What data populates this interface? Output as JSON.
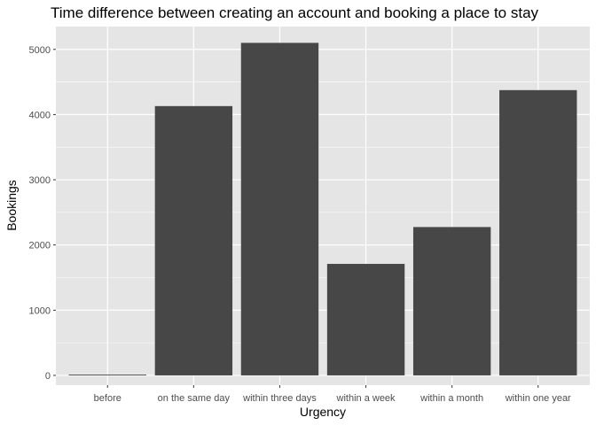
{
  "chart_data": {
    "type": "bar",
    "title": "Time difference between creating an account and booking a place to stay",
    "xlabel": "Urgency",
    "ylabel": "Bookings",
    "categories": [
      "before",
      "on the same day",
      "within three days",
      "within a week",
      "within a month",
      "within one year"
    ],
    "values": [
      12,
      4130,
      5100,
      1710,
      2275,
      4375
    ],
    "ylim": [
      -150,
      5350
    ],
    "yticks": [
      0,
      1000,
      2000,
      3000,
      4000,
      5000
    ],
    "grid": true,
    "legend": "none",
    "colors": {
      "bar": "#474747",
      "panel": "#e5e5e5",
      "grid_major": "#ffffff",
      "tick_text": "#4d4d4d"
    }
  }
}
